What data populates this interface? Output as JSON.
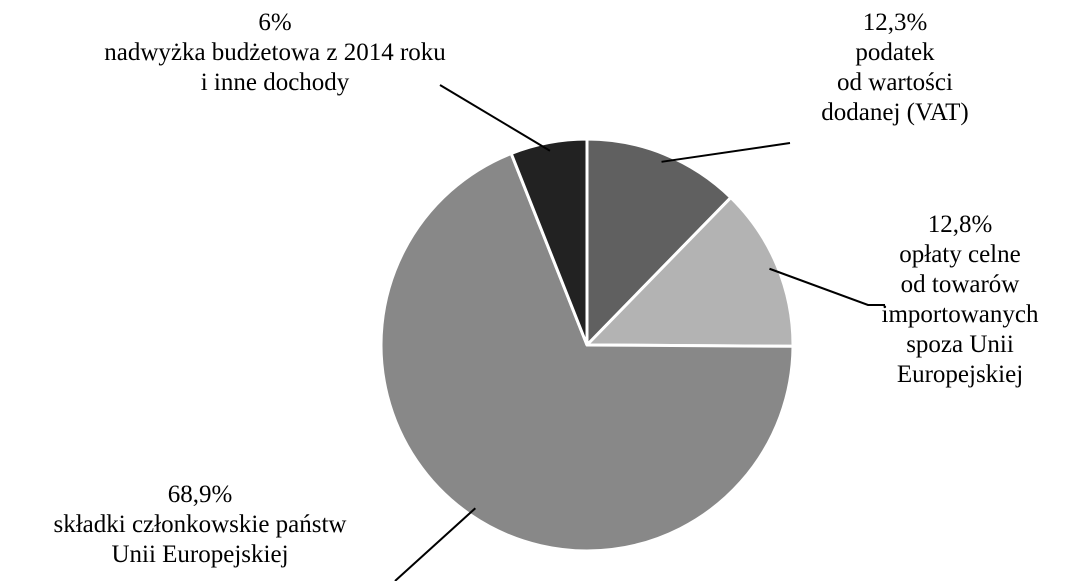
{
  "chart_data": {
    "type": "pie",
    "title": "",
    "start_angle_deg": 0,
    "direction": "clockwise",
    "slices": [
      {
        "value": 12.3,
        "color": "#606060",
        "label_lines": [
          "12,3%",
          "podatek",
          "od wartości",
          "dodanej (VAT)"
        ]
      },
      {
        "value": 12.8,
        "color": "#b3b3b3",
        "label_lines": [
          "12,8%",
          "opłaty celne",
          "od towarów",
          "importowanych",
          "spoza Unii",
          "Europejskiej"
        ]
      },
      {
        "value": 68.9,
        "color": "#888888",
        "label_lines": [
          "68,9%",
          "składki członkowskie państw",
          "Unii Europejskiej"
        ]
      },
      {
        "value": 6.0,
        "color": "#222222",
        "label_lines": [
          "6%",
          "nadwyżka budżetowa z 2014 roku",
          "i inne dochody"
        ]
      }
    ]
  }
}
